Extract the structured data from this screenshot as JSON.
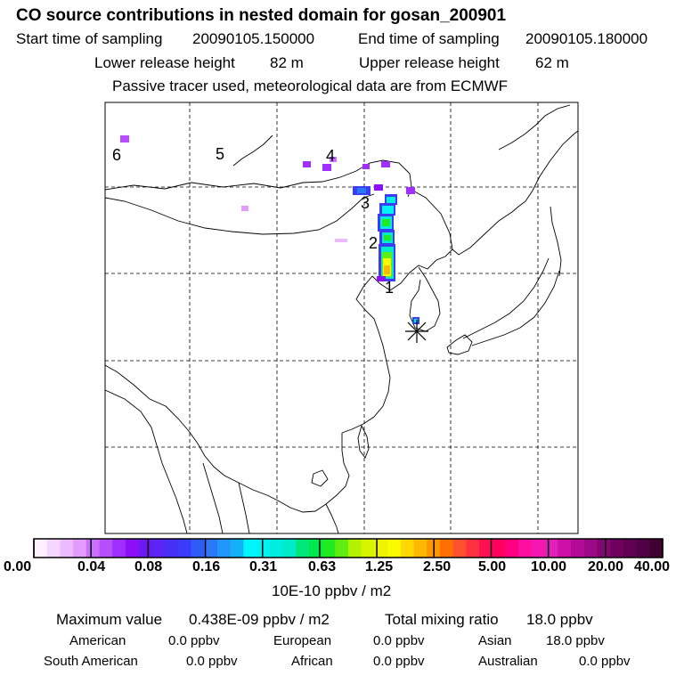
{
  "header": {
    "title": "CO  source contributions in nested domain for gosan_200901",
    "start_label": "Start time of sampling",
    "start_value": "20090105.150000",
    "end_label": "End time of sampling",
    "end_value": "20090105.180000",
    "lower_label": "Lower release height",
    "lower_value": "82 m",
    "upper_label": "Upper release height",
    "upper_value": "62 m",
    "tracer_note": "Passive tracer used, meteorological data are from ECMWF"
  },
  "map": {
    "trajectory_labels": [
      "1",
      "2",
      "3",
      "4",
      "5",
      "6"
    ],
    "receptor_marker": "asterisk-icon"
  },
  "colorbar": {
    "tick_labels": [
      "0.00",
      "0.04",
      "0.08",
      "0.16",
      "0.31",
      "0.63",
      "1.25",
      "2.50",
      "5.00",
      "10.00",
      "20.00",
      "40.00"
    ],
    "unit": "10E-10 ppbv / m2",
    "colors": [
      "#fff0ff",
      "#f5d6ff",
      "#ecbaff",
      "#e29cff",
      "#cc70ff",
      "#b84fff",
      "#a02eff",
      "#8c10f5",
      "#6f18f0",
      "#5a25f5",
      "#4630f8",
      "#3a3cf7",
      "#2e5cf8",
      "#2878f8",
      "#1f96f8",
      "#12b0f6",
      "#00f6ff",
      "#00f2f2",
      "#00eee0",
      "#00ebc9",
      "#00e87a",
      "#00e850",
      "#20ea20",
      "#60ee10",
      "#b2f200",
      "#d8f400",
      "#eef400",
      "#fbfb00",
      "#ffd800",
      "#ffb800",
      "#ff9600",
      "#ff7000",
      "#ff5030",
      "#ff3040",
      "#ff1050",
      "#ff0060",
      "#ff0080",
      "#ff10a0",
      "#f418b0",
      "#e020b8",
      "#cc10a8",
      "#b40a98",
      "#9c0888",
      "#800870",
      "#700060",
      "#600050",
      "#500045",
      "#400030"
    ]
  },
  "stats": {
    "max_label": "Maximum value",
    "max_value": "0.438E-09 ppbv / m2",
    "total_label": "Total mixing ratio",
    "total_value": "18.0 ppbv",
    "regions": [
      {
        "name": "American",
        "value": "0.0 ppbv"
      },
      {
        "name": "European",
        "value": "0.0 ppbv"
      },
      {
        "name": "Asian",
        "value": "18.0 ppbv"
      },
      {
        "name": "South American",
        "value": "0.0 ppbv"
      },
      {
        "name": "African",
        "value": "0.0 ppbv"
      },
      {
        "name": "Australian",
        "value": "0.0 ppbv"
      }
    ]
  }
}
